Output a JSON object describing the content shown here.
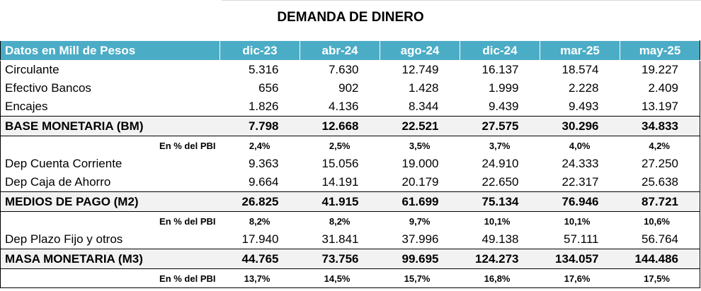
{
  "title": "DEMANDA DE DINERO",
  "header": {
    "label": "Datos en Mill de Pesos",
    "periods": [
      "dic-23",
      "abr-24",
      "ago-24",
      "dic-24",
      "mar-25",
      "may-25"
    ]
  },
  "rows": [
    {
      "label": "Circulante",
      "values": [
        "5.316",
        "7.630",
        "12.749",
        "16.137",
        "18.574",
        "19.227"
      ]
    },
    {
      "label": "Efectivo Bancos",
      "values": [
        "656",
        "902",
        "1.428",
        "1.999",
        "2.228",
        "2.409"
      ]
    },
    {
      "label": "Encajes",
      "values": [
        "1.826",
        "4.136",
        "8.344",
        "9.439",
        "9.493",
        "13.197"
      ]
    },
    {
      "label": "BASE MONETARIA (BM)",
      "values": [
        "7.798",
        "12.668",
        "22.521",
        "27.575",
        "30.296",
        "34.833"
      ]
    },
    {
      "label": "En % del PBI",
      "values": [
        "2,4%",
        "2,5%",
        "3,5%",
        "3,7%",
        "4,0%",
        "4,2%"
      ]
    },
    {
      "label": "Dep Cuenta Corriente",
      "values": [
        "9.363",
        "15.056",
        "19.000",
        "24.910",
        "24.333",
        "27.250"
      ]
    },
    {
      "label": "Dep Caja de Ahorro",
      "values": [
        "9.664",
        "14.191",
        "20.179",
        "22.650",
        "22.317",
        "25.638"
      ]
    },
    {
      "label": "MEDIOS DE PAGO (M2)",
      "values": [
        "26.825",
        "41.915",
        "61.699",
        "75.134",
        "76.946",
        "87.721"
      ]
    },
    {
      "label": "En % del PBI",
      "values": [
        "8,2%",
        "8,2%",
        "9,7%",
        "10,1%",
        "10,1%",
        "10,6%"
      ]
    },
    {
      "label": "Dep Plazo Fijo y otros",
      "values": [
        "17.940",
        "31.841",
        "37.996",
        "49.138",
        "57.111",
        "56.764"
      ]
    },
    {
      "label": "MASA MONETARIA (M3)",
      "values": [
        "44.765",
        "73.756",
        "99.695",
        "124.273",
        "134.057",
        "144.486"
      ]
    },
    {
      "label": "En % del PBI",
      "values": [
        "13,7%",
        "14,5%",
        "15,7%",
        "16,8%",
        "17,6%",
        "17,5%"
      ]
    }
  ],
  "colors": {
    "header_bg": "#4bacc6",
    "header_text": "#ffffff",
    "total_bg": "#f2f2f2"
  }
}
